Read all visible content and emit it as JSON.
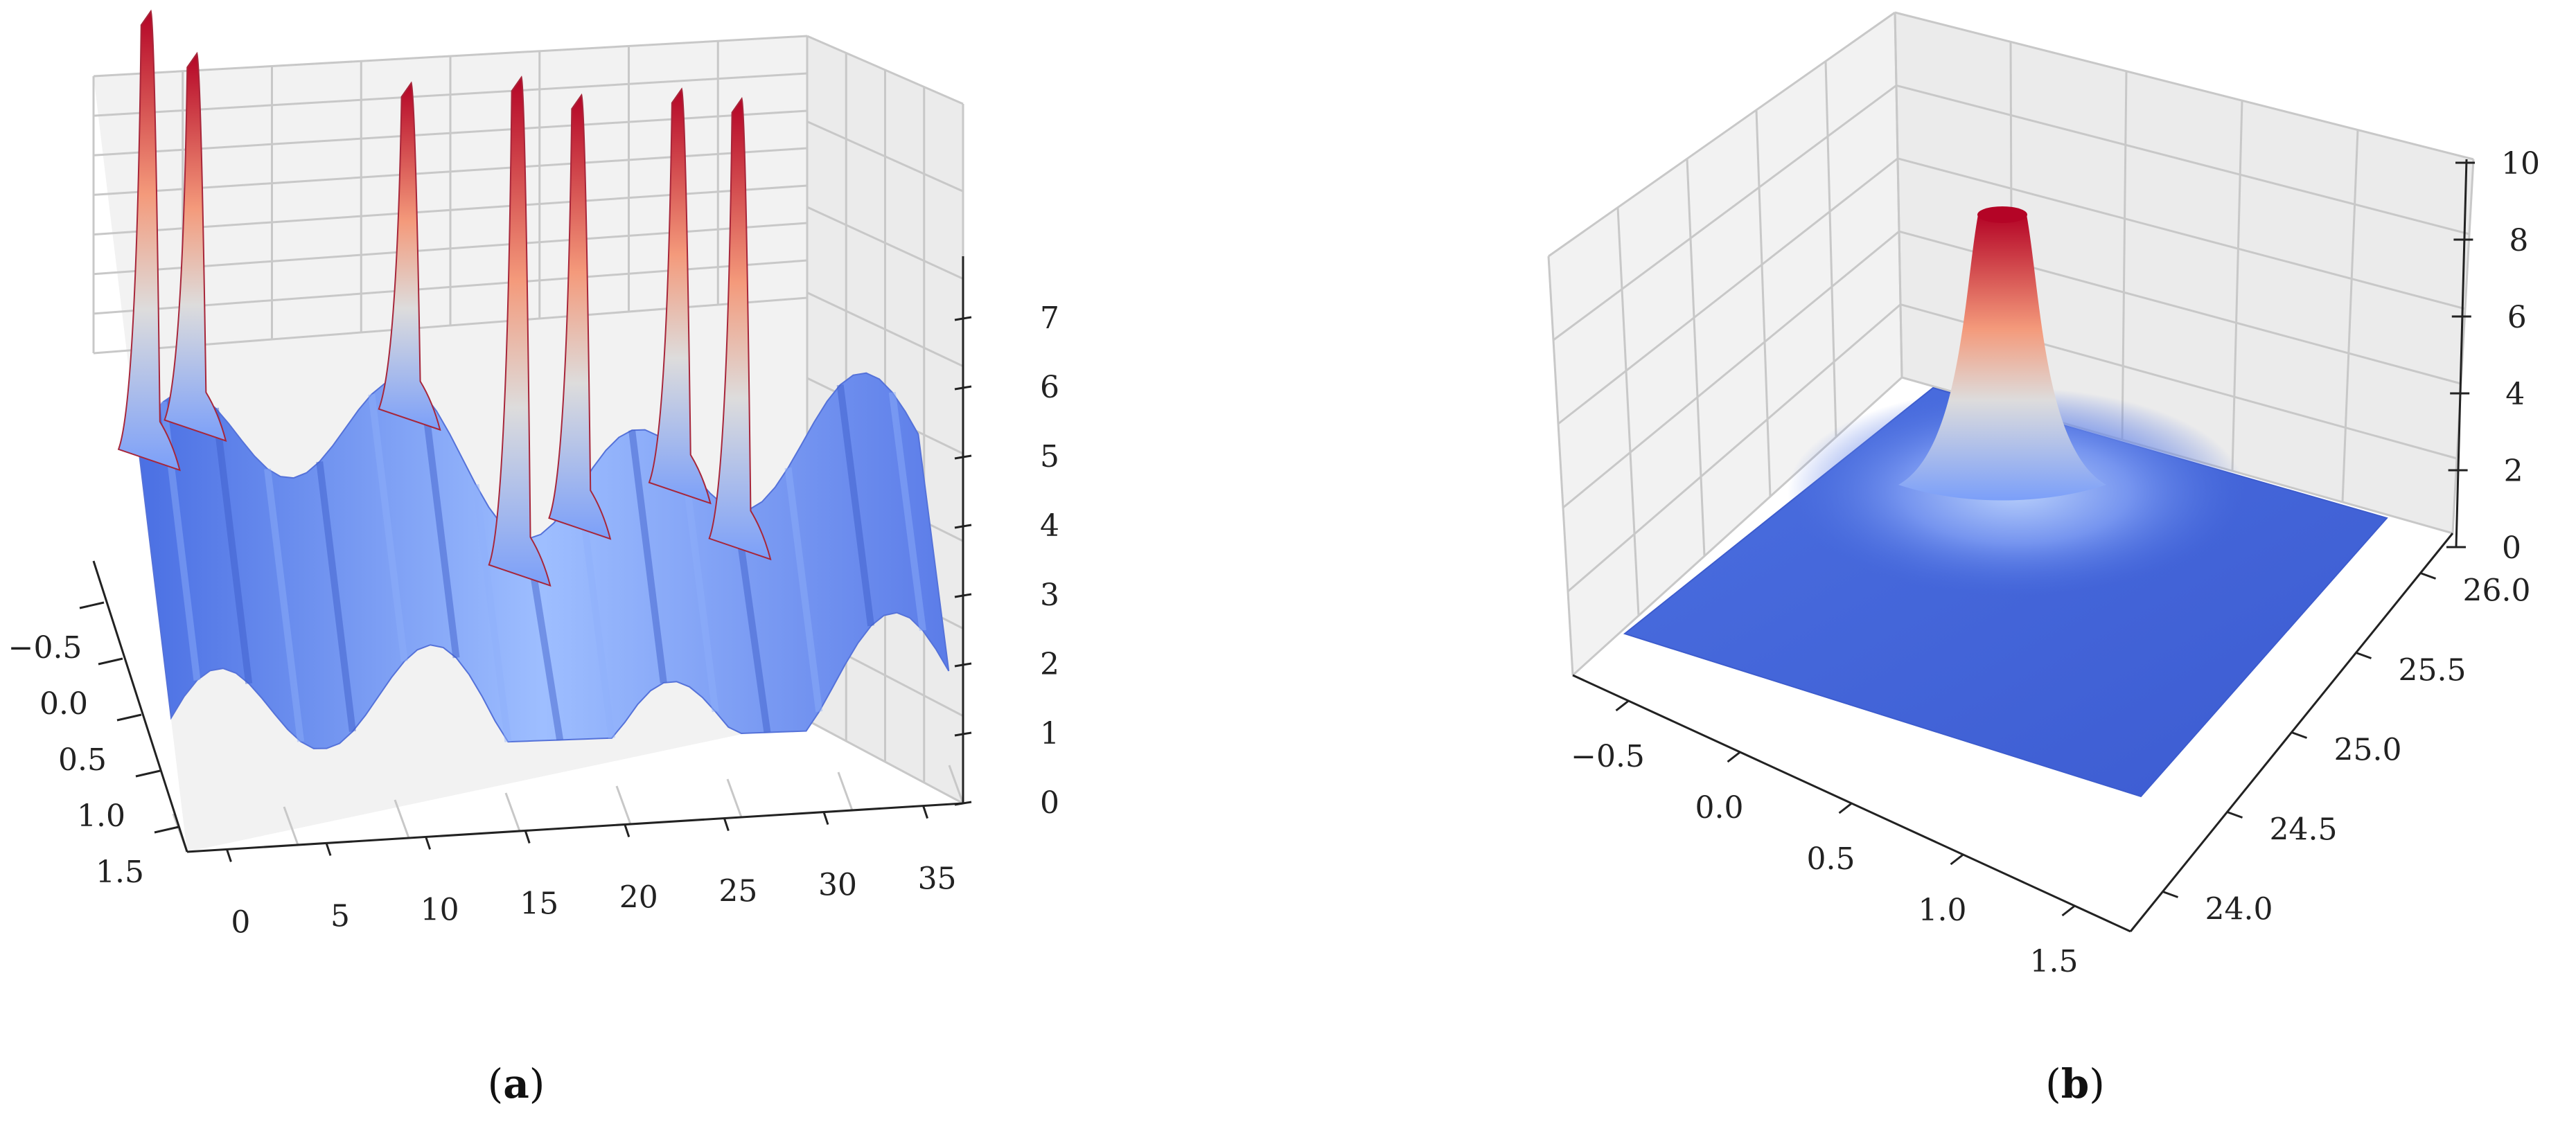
{
  "chart_data": [
    {
      "panel": "a",
      "type": "surface3d",
      "caption": "(a)",
      "colormap": "coolwarm",
      "x_ticks": [
        "0",
        "5",
        "10",
        "15",
        "20",
        "25",
        "30",
        "35"
      ],
      "y_ticks": [
        "−0.5",
        "0.0",
        "0.5",
        "1.0",
        "1.5"
      ],
      "z_ticks": [
        "0",
        "1",
        "2",
        "3",
        "4",
        "5",
        "6",
        "7"
      ],
      "xlim": [
        -2,
        37
      ],
      "ylim": [
        -0.75,
        1.6
      ],
      "zlim": [
        0,
        7.4
      ],
      "grid": true,
      "peaks": [
        {
          "x": -1.5,
          "z": 7.0
        },
        {
          "x": 0.8,
          "z": 6.5
        },
        {
          "x": 11.5,
          "z": 6.2
        },
        {
          "x": 17.0,
          "z": 6.3
        },
        {
          "x": 20.0,
          "z": 6.1
        },
        {
          "x": 25.0,
          "z": 6.2
        },
        {
          "x": 28.0,
          "z": 6.1
        }
      ]
    },
    {
      "panel": "b",
      "type": "surface3d",
      "caption": "(b)",
      "colormap": "coolwarm",
      "x_ticks": [
        "−0.5",
        "0.0",
        "0.5",
        "1.0",
        "1.5"
      ],
      "y_ticks": [
        "24.0",
        "24.5",
        "25.0",
        "25.5",
        "26.0"
      ],
      "z_ticks": [
        "0",
        "2",
        "4",
        "6",
        "8",
        "10"
      ],
      "xlim": [
        -0.75,
        1.75
      ],
      "ylim": [
        23.85,
        26.2
      ],
      "zlim": [
        0,
        10
      ],
      "grid": true,
      "peaks": [
        {
          "x": 0.1,
          "y": 25.6,
          "z": 10.0
        }
      ]
    }
  ]
}
